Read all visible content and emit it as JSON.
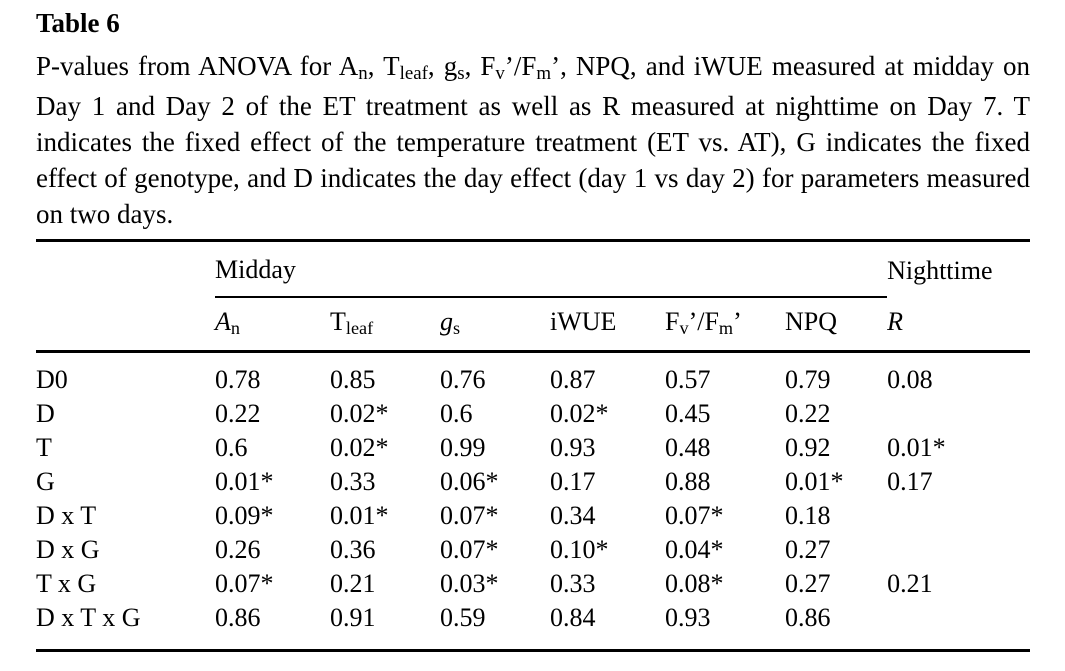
{
  "title": "Table 6",
  "caption_segments": [
    {
      "t": "P-values from ANOVA for A"
    },
    {
      "t": "n",
      "sub": true
    },
    {
      "t": ", T"
    },
    {
      "t": "leaf",
      "sub": true
    },
    {
      "t": ", g"
    },
    {
      "t": "s",
      "sub": true
    },
    {
      "t": ", F"
    },
    {
      "t": "v",
      "sub": true
    },
    {
      "t": "’/F"
    },
    {
      "t": "m",
      "sub": true
    },
    {
      "t": "’, NPQ, and iWUE measured at midday on Day 1 and Day 2 of the ET treatment as well as R measured at nighttime on Day 7. T indicates the fixed effect of the temperature treatment (ET vs. AT), G indicates the fixed effect of genotype, and D indicates the day effect (day 1 vs day 2) for parameters measured on two days."
    }
  ],
  "table": {
    "group_headers": [
      {
        "label": "Midday",
        "span": 6
      },
      {
        "label": "Nighttime",
        "span": 1
      }
    ],
    "column_headers": [
      [
        {
          "t": "A",
          "i": true
        },
        {
          "t": "n",
          "sub": true
        }
      ],
      [
        {
          "t": "T"
        },
        {
          "t": "leaf",
          "sub": true
        }
      ],
      [
        {
          "t": "g",
          "i": true
        },
        {
          "t": "s",
          "sub": true
        }
      ],
      [
        {
          "t": "iWUE"
        }
      ],
      [
        {
          "t": "F"
        },
        {
          "t": "v",
          "sub": true
        },
        {
          "t": "’"
        },
        {
          "t": "/F"
        },
        {
          "t": "m",
          "sub": true
        },
        {
          "t": "’"
        }
      ],
      [
        {
          "t": "NPQ"
        }
      ],
      [
        {
          "t": "R",
          "i": true
        }
      ]
    ],
    "rows": [
      {
        "label": "D0",
        "values": [
          "0.78",
          "0.85",
          "0.76",
          "0.87",
          "0.57",
          "0.79",
          "0.08"
        ]
      },
      {
        "label": "D",
        "values": [
          "0.22",
          "0.02*",
          "0.6",
          "0.02*",
          "0.45",
          "0.22",
          ""
        ]
      },
      {
        "label": "T",
        "values": [
          "0.6",
          "0.02*",
          "0.99",
          "0.93",
          "0.48",
          "0.92",
          "0.01*"
        ]
      },
      {
        "label": "G",
        "values": [
          "0.01*",
          "0.33",
          "0.06*",
          "0.17",
          "0.88",
          "0.01*",
          "0.17"
        ]
      },
      {
        "label": "D x T",
        "values": [
          "0.09*",
          "0.01*",
          "0.07*",
          "0.34",
          "0.07*",
          "0.18",
          ""
        ]
      },
      {
        "label": "D x G",
        "values": [
          "0.26",
          "0.36",
          "0.07*",
          "0.10*",
          "0.04*",
          "0.27",
          ""
        ]
      },
      {
        "label": "T x G",
        "values": [
          "0.07*",
          "0.21",
          "0.03*",
          "0.33",
          "0.08*",
          "0.27",
          "0.21"
        ]
      },
      {
        "label": "D x T x G",
        "values": [
          "0.86",
          "0.91",
          "0.59",
          "0.84",
          "0.93",
          "0.86",
          ""
        ]
      }
    ]
  },
  "colors": {
    "text": "#000000",
    "background": "#ffffff",
    "rule": "#000000"
  }
}
